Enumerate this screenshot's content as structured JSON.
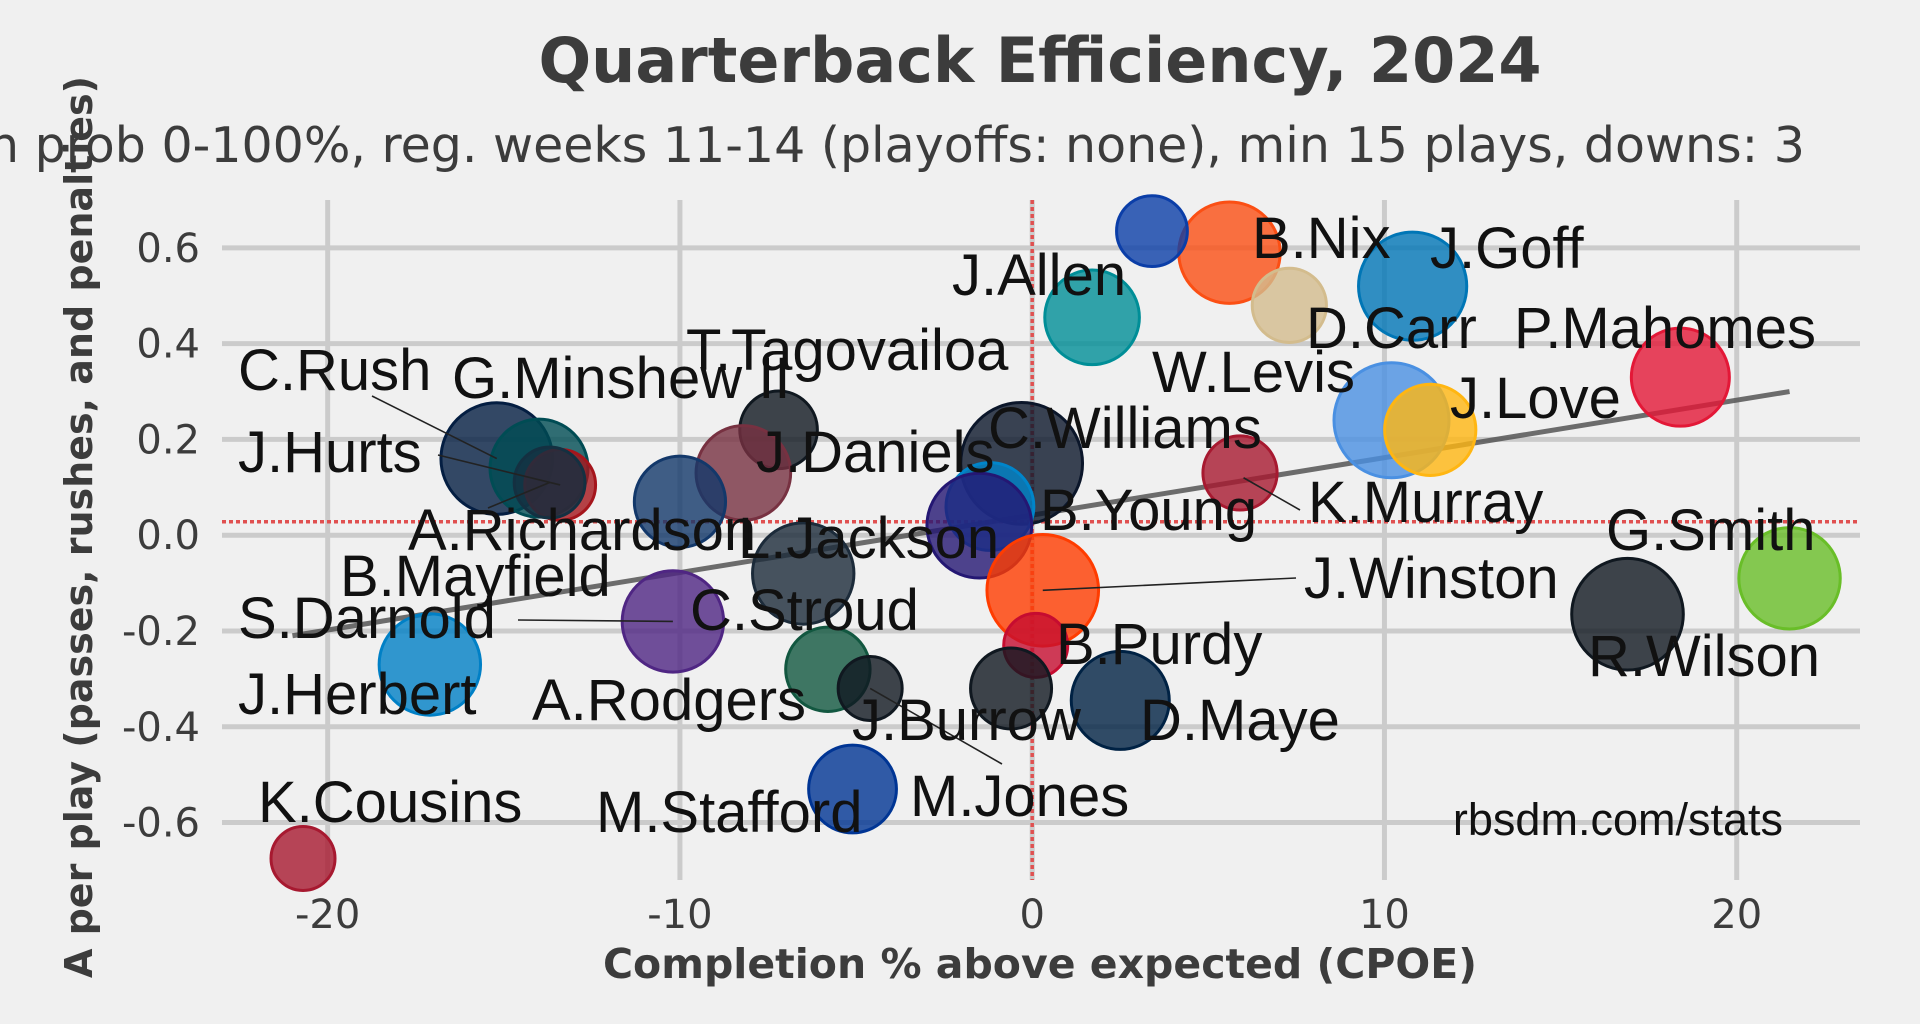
{
  "chart_data": {
    "type": "scatter",
    "title": "Quarterback Efficiency, 2024",
    "subtitle": "n prob 0-100%, reg. weeks 11-14 (playoffs: none), min 15 plays, downs: 3",
    "xlabel": "Completion % above expected (CPOE)",
    "ylabel": "A per play (passes, rushes, and penalties)",
    "watermark": "rbsdm.com/stats",
    "xlim": [
      -23,
      23.5
    ],
    "ylim": [
      -0.72,
      0.7
    ],
    "xticks": [
      -20,
      -10,
      0,
      10,
      20
    ],
    "yticks": [
      0.6,
      0.4,
      0.2,
      0.0,
      -0.2,
      -0.4,
      -0.6
    ],
    "xtick_labels": [
      "-20",
      "-10",
      "0",
      "10",
      "20"
    ],
    "ytick_labels": [
      "0.6",
      "0.4",
      "0.2",
      "0.0",
      "-0.2",
      "-0.4",
      "-0.6"
    ],
    "grid": true,
    "reference_lines": {
      "x": 0.0,
      "y": 0.028,
      "color": "#e05050"
    },
    "trend_line": {
      "x": [
        -21,
        21.5
      ],
      "y": [
        -0.21,
        0.3
      ],
      "color": "#555555"
    },
    "points": [
      {
        "label": "B.Nix",
        "x": 5.6,
        "y": 0.59,
        "size": 2.1,
        "color": "#fb4f14"
      },
      {
        "label": "",
        "x": 3.4,
        "y": 0.635,
        "size": 1.2,
        "color": "#0b3ea8"
      },
      {
        "label": "J.Goff",
        "x": 10.8,
        "y": 0.52,
        "size": 2.3,
        "color": "#0076b6"
      },
      {
        "label": "",
        "x": 7.3,
        "y": 0.48,
        "size": 1.3,
        "color": "#d3bc8d"
      },
      {
        "label": "J.Allen",
        "x": 1.7,
        "y": 0.455,
        "size": 1.9,
        "color": "#008e97"
      },
      {
        "label": "P.Mahomes",
        "x": 18.4,
        "y": 0.33,
        "size": 2.0,
        "color": "#e31837"
      },
      {
        "label": "D.Carr",
        "x": 10.2,
        "y": 0.24,
        "size": 2.5,
        "color": "#4a90e2"
      },
      {
        "label": "J.Love",
        "x": 11.3,
        "y": 0.22,
        "size": 1.8,
        "color": "#ffb612"
      },
      {
        "label": "W.Levis",
        "x": 5.9,
        "y": 0.13,
        "size": 1.3,
        "color": "#a71930"
      },
      {
        "label": "C.Williams",
        "x": -0.3,
        "y": 0.15,
        "size": 2.7,
        "color": "#0b162a"
      },
      {
        "label": "T.Tagovailoa",
        "x": -7.2,
        "y": 0.22,
        "size": 1.4,
        "color": "#101820"
      },
      {
        "label": "J.Daniels",
        "x": -8.2,
        "y": 0.13,
        "size": 1.9,
        "color": "#773141"
      },
      {
        "label": "",
        "x": -10.0,
        "y": 0.07,
        "size": 1.8,
        "color": "#13386a"
      },
      {
        "label": "C.Rush",
        "x": -15.2,
        "y": 0.16,
        "size": 2.4,
        "color": "#041e42"
      },
      {
        "label": "G.Minshew II",
        "x": -14.0,
        "y": 0.14,
        "size": 2.0,
        "color": "#004c54"
      },
      {
        "label": "J.Hurts",
        "x": -13.4,
        "y": 0.105,
        "size": 1.2,
        "color": "#a5151c"
      },
      {
        "label": "A.Richardson",
        "x": -13.7,
        "y": 0.11,
        "size": 1.2,
        "color": "#143041"
      },
      {
        "label": "B.Young",
        "x": -1.2,
        "y": 0.06,
        "size": 1.7,
        "color": "#0085ca"
      },
      {
        "label": "L.Jackson",
        "x": -1.5,
        "y": 0.02,
        "size": 2.2,
        "color": "#241773"
      },
      {
        "label": "",
        "x": -6.5,
        "y": -0.08,
        "size": 2.1,
        "color": "#1c2b3a"
      },
      {
        "label": "K.Murray",
        "x": 6.0,
        "y": 0.12,
        "size": 0.0,
        "color": "#97233f"
      },
      {
        "label": "J.Winston",
        "x": 0.3,
        "y": -0.115,
        "size": 2.4,
        "color": "#ff3c00"
      },
      {
        "label": "G.Smith",
        "x": 21.5,
        "y": -0.09,
        "size": 2.1,
        "color": "#69be28"
      },
      {
        "label": "R.Wilson",
        "x": 16.9,
        "y": -0.165,
        "size": 2.4,
        "color": "#101820"
      },
      {
        "label": "B.Mayfield",
        "x": -10.2,
        "y": -0.18,
        "size": 0.0,
        "color": "#d50a0a"
      },
      {
        "label": "S.Darnold",
        "x": -10.2,
        "y": -0.18,
        "size": 2.1,
        "color": "#4f2683"
      },
      {
        "label": "C.Stroud",
        "x": -10.2,
        "y": -0.18,
        "size": 0.0,
        "color": "#03202f"
      },
      {
        "label": "B.Purdy",
        "x": 0.1,
        "y": -0.23,
        "size": 1.0,
        "color": "#c60c30"
      },
      {
        "label": "J.Herbert",
        "x": -17.1,
        "y": -0.27,
        "size": 2.1,
        "color": "#0080c6"
      },
      {
        "label": "A.Rodgers",
        "x": -5.8,
        "y": -0.28,
        "size": 1.6,
        "color": "#125740"
      },
      {
        "label": "J.Burrow",
        "x": -0.6,
        "y": -0.32,
        "size": 1.5,
        "color": "#101820"
      },
      {
        "label": "M.Jones",
        "x": -4.6,
        "y": -0.32,
        "size": 1.0,
        "color": "#101820"
      },
      {
        "label": "D.Maye",
        "x": 2.5,
        "y": -0.345,
        "size": 2.0,
        "color": "#002244"
      },
      {
        "label": "M.Stafford",
        "x": -5.1,
        "y": -0.53,
        "size": 1.7,
        "color": "#003594"
      },
      {
        "label": "K.Cousins",
        "x": -20.7,
        "y": -0.675,
        "size": 1.0,
        "color": "#a71930"
      }
    ]
  }
}
